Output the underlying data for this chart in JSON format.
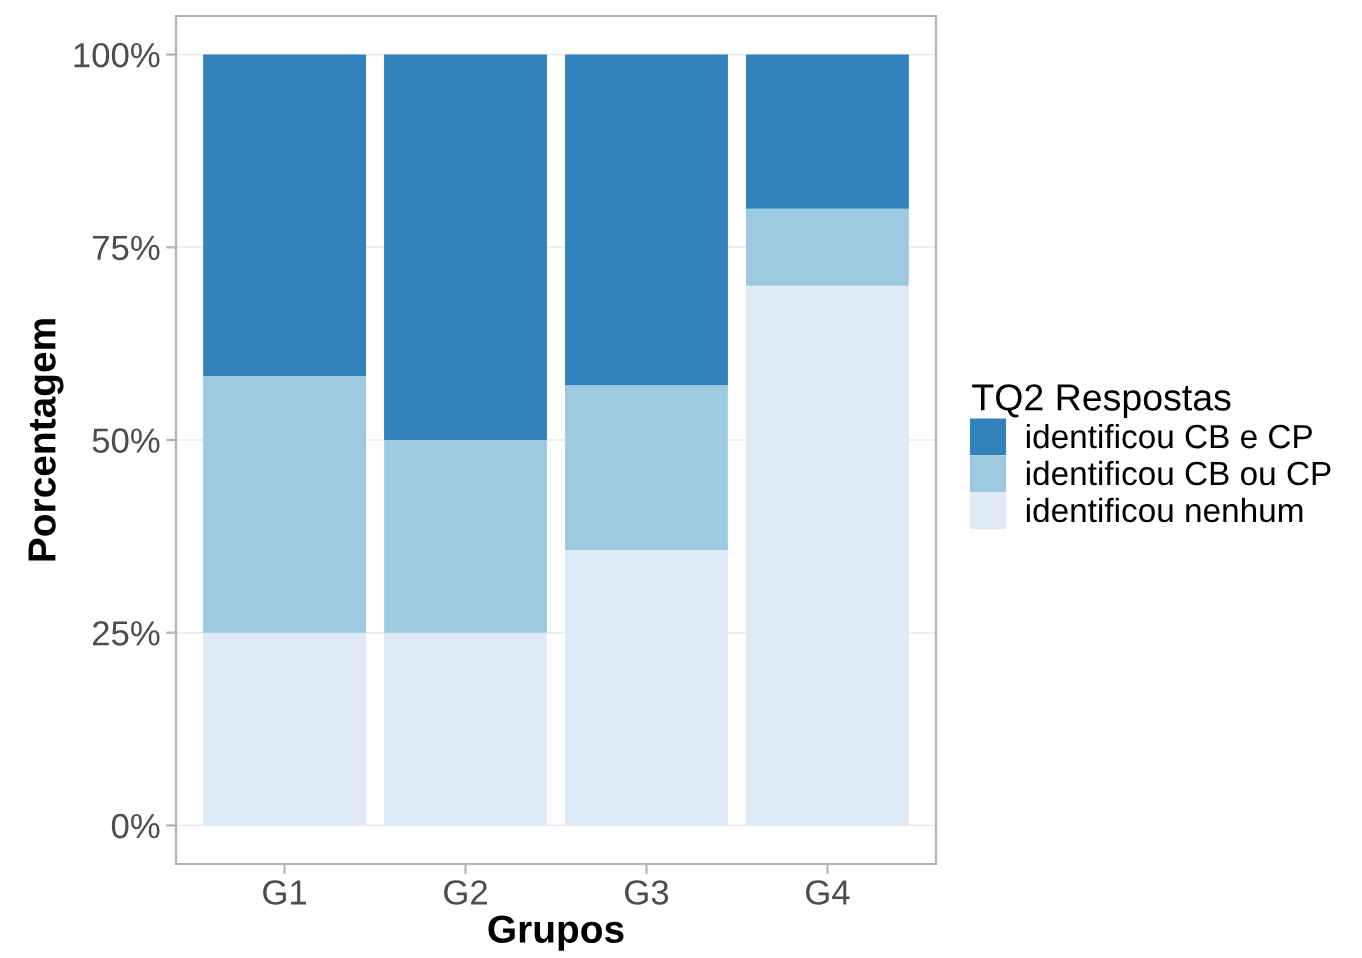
{
  "chart_data": {
    "type": "bar",
    "stacked": true,
    "xlabel": "Grupos",
    "ylabel": "Porcentagem",
    "legend_title": "TQ2 Respostas",
    "categories": [
      "G1",
      "G2",
      "G3",
      "G4"
    ],
    "series": [
      {
        "name": "identificou nenhum",
        "color": "#deebf7",
        "values": [
          25,
          25,
          35.7,
          70
        ]
      },
      {
        "name": "identificou CB ou CP",
        "color": "#9ecae1",
        "values": [
          33.3,
          25,
          21.4,
          10
        ]
      },
      {
        "name": "identificou CB e CP",
        "color": "#3182bd",
        "values": [
          41.7,
          50,
          42.9,
          20
        ]
      }
    ],
    "ylim": [
      -5,
      105
    ],
    "yticks": [
      {
        "value": 0,
        "label": "0%"
      },
      {
        "value": 25,
        "label": "25%"
      },
      {
        "value": 50,
        "label": "50%"
      },
      {
        "value": 75,
        "label": "75%"
      },
      {
        "value": 100,
        "label": "100%"
      }
    ],
    "grid": "y",
    "legend": "right"
  }
}
